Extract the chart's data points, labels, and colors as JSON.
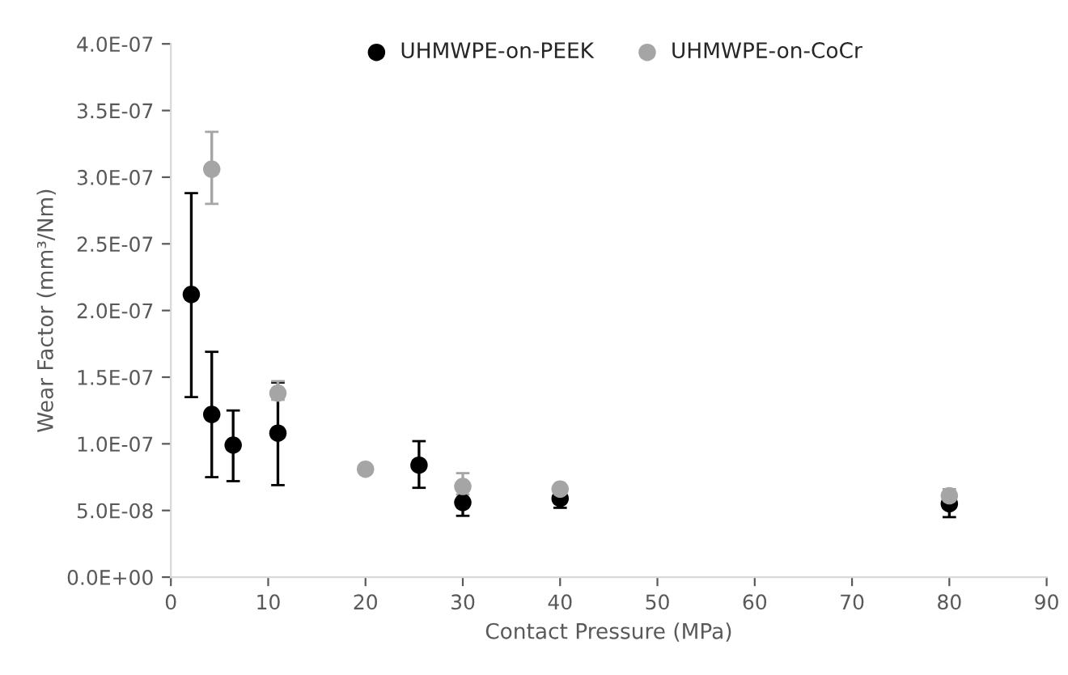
{
  "chart_data": {
    "type": "scatter",
    "xlabel": "Contact Pressure (MPa)",
    "ylabel": "Wear Factor (mm³/Nm)",
    "xlim": [
      0,
      90
    ],
    "xticks": [
      0,
      10,
      20,
      30,
      40,
      50,
      60,
      70,
      80,
      90
    ],
    "ylim": [
      0,
      4e-07
    ],
    "yticks": [
      {
        "value": 0,
        "label": "0.0E+00"
      },
      {
        "value": 5e-08,
        "label": "5.0E-08"
      },
      {
        "value": 1e-07,
        "label": "1.0E-07"
      },
      {
        "value": 1.5e-07,
        "label": "1.5E-07"
      },
      {
        "value": 2e-07,
        "label": "2.0E-07"
      },
      {
        "value": 2.5e-07,
        "label": "2.5E-07"
      },
      {
        "value": 3e-07,
        "label": "3.0E-07"
      },
      {
        "value": 3.5e-07,
        "label": "3.5E-07"
      },
      {
        "value": 4e-07,
        "label": "4.0E-07"
      }
    ],
    "grid": false,
    "legend": "top",
    "marker": "circle",
    "series": [
      {
        "name": "UHMWPE-on-PEEK",
        "color": "#000000",
        "x": [
          2.1,
          4.2,
          6.4,
          11,
          25.5,
          30,
          40,
          80
        ],
        "values": [
          2.12e-07,
          1.22e-07,
          9.9e-08,
          1.08e-07,
          8.4e-08,
          5.6e-08,
          5.9e-08,
          5.5e-08
        ],
        "errors": [
          [
            1.35e-07,
            2.88e-07
          ],
          [
            7.5e-08,
            1.69e-07
          ],
          [
            7.2e-08,
            1.25e-07
          ],
          [
            6.9e-08,
            1.46e-07
          ],
          [
            6.7e-08,
            1.02e-07
          ],
          [
            4.6e-08,
            6.5e-08
          ],
          [
            5.2e-08,
            6.4e-08
          ],
          [
            4.5e-08,
            6.4e-08
          ]
        ]
      },
      {
        "name": "UHMWPE-on-CoCr",
        "color": "#a5a5a5",
        "x": [
          4.2,
          11,
          20,
          30,
          40,
          80
        ],
        "values": [
          3.06e-07,
          1.38e-07,
          8.1e-08,
          6.8e-08,
          6.6e-08,
          6.1e-08
        ],
        "errors": [
          [
            2.8e-07,
            3.34e-07
          ],
          [
            1.33e-07,
            1.47e-07
          ],
          [
            7.8e-08,
            8.4e-08
          ],
          [
            6.2e-08,
            7.8e-08
          ],
          [
            6.4e-08,
            6.8e-08
          ],
          [
            5.7e-08,
            6.6e-08
          ]
        ]
      }
    ]
  }
}
